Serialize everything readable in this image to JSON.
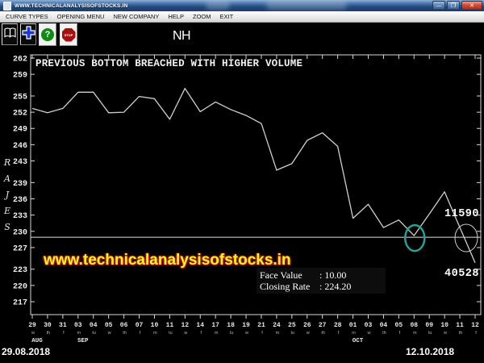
{
  "window": {
    "title": "WWW.TECHNICALANALYSISOFSTOCKS.IN",
    "minimize_glyph": "—",
    "maximize_glyph": "❐",
    "close_glyph": "✕"
  },
  "menu": {
    "items": [
      {
        "id": "curve-types",
        "label": "CURVE TYPES"
      },
      {
        "id": "opening-menu",
        "label": "OPENING MENU"
      },
      {
        "id": "new-company",
        "label": "NEW COMPANY"
      },
      {
        "id": "help",
        "label": "HELP"
      },
      {
        "id": "zoom",
        "label": "ZOOM"
      },
      {
        "id": "exit",
        "label": "EXIT"
      }
    ]
  },
  "toolbar": {
    "help_glyph": "?",
    "stop_glyph": "STOP"
  },
  "header": {
    "symbol": "NH"
  },
  "watermarks": {
    "site": "www.technicalanalysisofstocks.in",
    "vertical_letters": [
      "R",
      "A",
      "J",
      "E",
      "S"
    ]
  },
  "info_box": {
    "rows": [
      {
        "label": "Face Value",
        "value": ": 10.00"
      },
      {
        "label": "Closing Rate",
        "value": ": 224.20"
      }
    ]
  },
  "footer": {
    "start_date": "29.08.2018",
    "end_date": "12.10.2018"
  },
  "chart_data": {
    "type": "line",
    "title": "NH",
    "annotation": "PREVIOUS BOTTOM BREACHED WITH HIGHER VOLUME",
    "x_dates": [
      "29",
      "30",
      "31",
      "03",
      "04",
      "05",
      "06",
      "07",
      "10",
      "11",
      "12",
      "14",
      "17",
      "18",
      "19",
      "21",
      "24",
      "25",
      "26",
      "27",
      "28",
      "01",
      "03",
      "04",
      "05",
      "08",
      "09",
      "10",
      "11",
      "12"
    ],
    "x_days": [
      "w",
      "th",
      "f",
      "m",
      "tu",
      "w",
      "th",
      "f",
      "m",
      "tu",
      "w",
      "f",
      "m",
      "tu",
      "w",
      "f",
      "m",
      "tu",
      "w",
      "th",
      "f",
      "m",
      "w",
      "th",
      "f",
      "m",
      "tu",
      "w",
      "th",
      "f"
    ],
    "months": [
      {
        "label": "AUG",
        "index": 0
      },
      {
        "label": "SEP",
        "index": 3
      },
      {
        "label": "OCT",
        "index": 21
      }
    ],
    "values": [
      252.7,
      251.9,
      252.7,
      255.7,
      255.7,
      251.9,
      252.0,
      254.9,
      254.5,
      250.7,
      256.4,
      252.1,
      253.9,
      252.5,
      251.4,
      249.9,
      241.3,
      242.5,
      246.8,
      248.2,
      245.7,
      232.4,
      235.0,
      230.7,
      232.1,
      229.2,
      233.2,
      237.3,
      230.7,
      224.2
    ],
    "y_ticks": [
      262,
      259,
      255,
      252,
      249,
      246,
      243,
      239,
      236,
      233,
      230,
      227,
      223,
      220,
      217
    ],
    "ylim": [
      215,
      264
    ],
    "grid": false,
    "support_level": 228.9,
    "line_color": "#cfcfcf",
    "annotations": {
      "teal_circle_point_index": 25,
      "teal_color": "#2d9e96",
      "breach_circle": {
        "x": 578,
        "y": 295
      },
      "upper_value_label": "11590",
      "lower_value_label": "40528"
    }
  }
}
